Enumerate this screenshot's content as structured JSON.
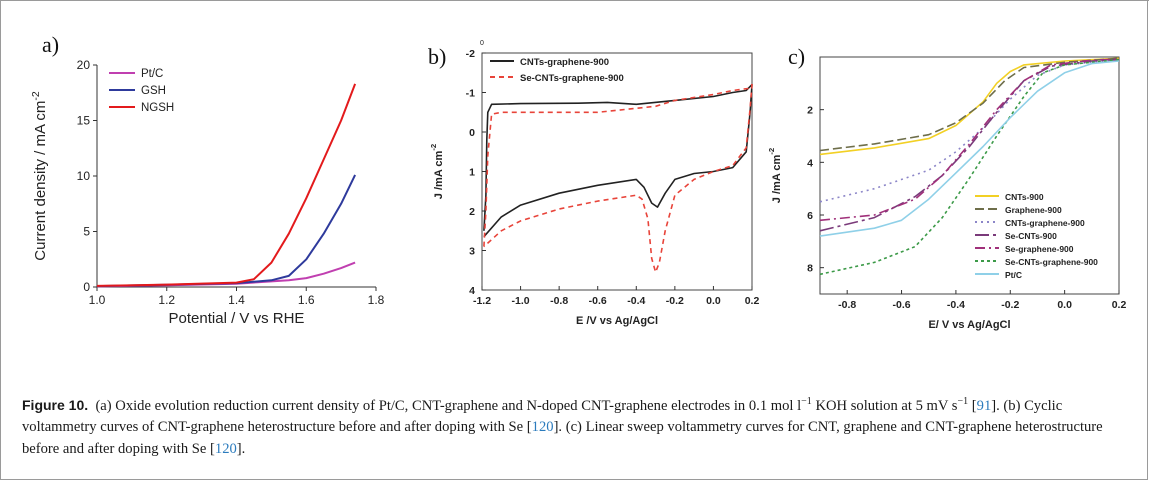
{
  "chart_data": [
    {
      "panel": "a)",
      "type": "line",
      "xlabel": "Potential / V vs RHE",
      "ylabel": "Current density / mA cm",
      "ylabel_sup": "-2",
      "xlim": [
        1.0,
        1.8
      ],
      "ylim": [
        0,
        20
      ],
      "xticks": [
        "1.0",
        "1.2",
        "1.4",
        "1.6",
        "1.8"
      ],
      "yticks": [
        "0",
        "5",
        "10",
        "15",
        "20"
      ],
      "legend": "top-left",
      "series": [
        {
          "name": "Pt/C",
          "color": "#c03fb0",
          "points": [
            [
              1.0,
              0.05
            ],
            [
              1.2,
              0.15
            ],
            [
              1.4,
              0.3
            ],
            [
              1.5,
              0.5
            ],
            [
              1.55,
              0.6
            ],
            [
              1.6,
              0.8
            ],
            [
              1.65,
              1.2
            ],
            [
              1.7,
              1.7
            ],
            [
              1.74,
              2.2
            ]
          ]
        },
        {
          "name": "GSH",
          "color": "#2e3a9c",
          "points": [
            [
              1.0,
              0.08
            ],
            [
              1.2,
              0.2
            ],
            [
              1.4,
              0.35
            ],
            [
              1.5,
              0.6
            ],
            [
              1.55,
              1.0
            ],
            [
              1.6,
              2.5
            ],
            [
              1.65,
              4.8
            ],
            [
              1.7,
              7.5
            ],
            [
              1.74,
              10.1
            ]
          ]
        },
        {
          "name": "NGSH",
          "color": "#e31a1c",
          "points": [
            [
              1.0,
              0.1
            ],
            [
              1.2,
              0.22
            ],
            [
              1.4,
              0.4
            ],
            [
              1.45,
              0.7
            ],
            [
              1.5,
              2.2
            ],
            [
              1.55,
              4.8
            ],
            [
              1.6,
              8.0
            ],
            [
              1.65,
              11.5
            ],
            [
              1.7,
              15.0
            ],
            [
              1.74,
              18.3
            ]
          ]
        }
      ]
    },
    {
      "panel": "b)",
      "type": "line",
      "xlabel": "E /V vs Ag/AgCl",
      "ylabel": "J /mA cm",
      "ylabel_sup": "-2",
      "xlim": [
        -1.2,
        0.2
      ],
      "ylim": [
        -2,
        4
      ],
      "inverted_y": true,
      "top_tick": "0",
      "xticks": [
        "-1.2",
        "-1.0",
        "-0.8",
        "-0.6",
        "-0.4",
        "-0.2",
        "0.0",
        "0.2"
      ],
      "yticks": [
        "-2",
        "-1",
        "0",
        "1",
        "2",
        "3",
        "4"
      ],
      "legend": "top-left",
      "series": [
        {
          "name": "CNTs-graphene-900",
          "color": "#222222",
          "dash": "none",
          "points": [
            [
              -1.19,
              2.5
            ],
            [
              -1.18,
              1.6
            ],
            [
              -1.175,
              0.2
            ],
            [
              -1.17,
              -0.5
            ],
            [
              -1.15,
              -0.7
            ],
            [
              -1.0,
              -0.72
            ],
            [
              -0.7,
              -0.73
            ],
            [
              -0.55,
              -0.75
            ],
            [
              -0.4,
              -0.7
            ],
            [
              -0.2,
              -0.8
            ],
            [
              0.0,
              -0.9
            ],
            [
              0.1,
              -1.0
            ],
            [
              0.17,
              -1.05
            ],
            [
              0.2,
              -1.2
            ],
            [
              0.19,
              -0.5
            ],
            [
              0.17,
              0.5
            ],
            [
              0.1,
              0.9
            ],
            [
              0.0,
              1.0
            ],
            [
              -0.1,
              1.05
            ],
            [
              -0.2,
              1.2
            ],
            [
              -0.25,
              1.55
            ],
            [
              -0.29,
              1.9
            ],
            [
              -0.32,
              1.8
            ],
            [
              -0.36,
              1.4
            ],
            [
              -0.4,
              1.2
            ],
            [
              -0.6,
              1.35
            ],
            [
              -0.8,
              1.55
            ],
            [
              -1.0,
              1.85
            ],
            [
              -1.1,
              2.15
            ],
            [
              -1.19,
              2.65
            ]
          ]
        },
        {
          "name": "Se-CNTs-graphene-900",
          "color": "#e8443a",
          "dash": "5,4",
          "points": [
            [
              -1.19,
              2.9
            ],
            [
              -1.18,
              2.0
            ],
            [
              -1.17,
              0.6
            ],
            [
              -1.15,
              -0.45
            ],
            [
              -1.1,
              -0.5
            ],
            [
              -1.0,
              -0.5
            ],
            [
              -0.6,
              -0.5
            ],
            [
              -0.5,
              -0.55
            ],
            [
              -0.3,
              -0.65
            ],
            [
              -0.2,
              -0.8
            ],
            [
              0.0,
              -0.95
            ],
            [
              0.1,
              -1.05
            ],
            [
              0.18,
              -1.1
            ],
            [
              0.2,
              -1.2
            ],
            [
              0.19,
              -0.6
            ],
            [
              0.17,
              0.4
            ],
            [
              0.1,
              0.85
            ],
            [
              0.0,
              1.0
            ],
            [
              -0.1,
              1.2
            ],
            [
              -0.2,
              1.6
            ],
            [
              -0.25,
              2.5
            ],
            [
              -0.28,
              3.3
            ],
            [
              -0.3,
              3.55
            ],
            [
              -0.32,
              3.2
            ],
            [
              -0.34,
              2.2
            ],
            [
              -0.37,
              1.7
            ],
            [
              -0.4,
              1.6
            ],
            [
              -0.6,
              1.75
            ],
            [
              -0.8,
              1.95
            ],
            [
              -1.0,
              2.25
            ],
            [
              -1.1,
              2.5
            ],
            [
              -1.19,
              2.9
            ]
          ]
        }
      ]
    },
    {
      "panel": "c)",
      "type": "line",
      "xlabel": "E/ V vs Ag/AgCl",
      "ylabel": "J /mA cm",
      "ylabel_sup": "-2",
      "xlim": [
        -0.9,
        0.2
      ],
      "ylim": [
        0,
        9
      ],
      "inverted_y": true,
      "xticks": [
        "-0.8",
        "-0.6",
        "-0.4",
        "-0.2",
        "0.0",
        "0.2"
      ],
      "yticks": [
        "2",
        "4",
        "6",
        "8"
      ],
      "legend": "bottom-right",
      "series": [
        {
          "name": "CNTs-900",
          "color": "#f2d024",
          "dash": "none",
          "points": [
            [
              -0.9,
              3.7
            ],
            [
              -0.7,
              3.45
            ],
            [
              -0.5,
              3.1
            ],
            [
              -0.4,
              2.6
            ],
            [
              -0.3,
              1.7
            ],
            [
              -0.25,
              1.0
            ],
            [
              -0.2,
              0.55
            ],
            [
              -0.15,
              0.3
            ],
            [
              0.0,
              0.15
            ],
            [
              0.2,
              0.05
            ]
          ]
        },
        {
          "name": "Graphene-900",
          "color": "#6e6e4a",
          "dash": "9,4",
          "points": [
            [
              -0.9,
              3.55
            ],
            [
              -0.7,
              3.3
            ],
            [
              -0.5,
              2.95
            ],
            [
              -0.4,
              2.5
            ],
            [
              -0.3,
              1.75
            ],
            [
              -0.22,
              0.9
            ],
            [
              -0.15,
              0.4
            ],
            [
              0.0,
              0.2
            ],
            [
              0.2,
              0.05
            ]
          ]
        },
        {
          "name": "CNTs-graphene-900",
          "color": "#8c86c8",
          "dash": "2,4",
          "points": [
            [
              -0.9,
              5.5
            ],
            [
              -0.7,
              5.0
            ],
            [
              -0.5,
              4.3
            ],
            [
              -0.4,
              3.6
            ],
            [
              -0.3,
              2.7
            ],
            [
              -0.2,
              1.6
            ],
            [
              -0.1,
              0.7
            ],
            [
              0.0,
              0.3
            ],
            [
              0.2,
              0.1
            ]
          ]
        },
        {
          "name": "Se-CNTs-900",
          "color": "#7a3a7a",
          "dash": "14,4,3,4",
          "points": [
            [
              -0.9,
              6.6
            ],
            [
              -0.7,
              6.1
            ],
            [
              -0.55,
              5.3
            ],
            [
              -0.45,
              4.5
            ],
            [
              -0.35,
              3.4
            ],
            [
              -0.25,
              2.1
            ],
            [
              -0.15,
              0.9
            ],
            [
              -0.05,
              0.35
            ],
            [
              0.1,
              0.15
            ],
            [
              0.2,
              0.1
            ]
          ]
        },
        {
          "name": "Se-graphene-900",
          "color": "#a0307a",
          "dash": "10,4,2,4",
          "points": [
            [
              -0.9,
              6.2
            ],
            [
              -0.7,
              6.0
            ],
            [
              -0.55,
              5.4
            ],
            [
              -0.45,
              4.5
            ],
            [
              -0.35,
              3.3
            ],
            [
              -0.25,
              2.0
            ],
            [
              -0.15,
              0.9
            ],
            [
              -0.05,
              0.3
            ],
            [
              0.1,
              0.12
            ],
            [
              0.2,
              0.08
            ]
          ]
        },
        {
          "name": "Se-CNTs-graphene-900",
          "color": "#3c9a48",
          "dash": "3,3",
          "points": [
            [
              -0.9,
              8.25
            ],
            [
              -0.7,
              7.8
            ],
            [
              -0.55,
              7.2
            ],
            [
              -0.45,
              6.1
            ],
            [
              -0.35,
              4.6
            ],
            [
              -0.25,
              3.0
            ],
            [
              -0.15,
              1.5
            ],
            [
              -0.08,
              0.6
            ],
            [
              0.0,
              0.3
            ],
            [
              0.2,
              0.1
            ]
          ]
        },
        {
          "name": "Pt/C",
          "color": "#8fd0e8",
          "dash": "none",
          "points": [
            [
              -0.9,
              6.8
            ],
            [
              -0.7,
              6.5
            ],
            [
              -0.6,
              6.2
            ],
            [
              -0.5,
              5.4
            ],
            [
              -0.4,
              4.4
            ],
            [
              -0.3,
              3.4
            ],
            [
              -0.2,
              2.3
            ],
            [
              -0.1,
              1.3
            ],
            [
              0.0,
              0.6
            ],
            [
              0.1,
              0.25
            ],
            [
              0.2,
              0.15
            ]
          ]
        }
      ]
    }
  ],
  "caption": {
    "figure_label": "Figure 10.",
    "text_1": "(a) Oxide evolution reduction current density of Pt/C, CNT-graphene and N-doped CNT-graphene electrodes in 0.1 mol l",
    "sup_1": "−1",
    "text_2": " KOH solution at 5 mV s",
    "sup_2": "−1",
    "text_3": " [",
    "ref_1": "91",
    "text_4": "]. (b) Cyclic voltammetry curves of CNT-graphene heterostructure before and after doping with Se [",
    "ref_2": "120",
    "text_5": "]. (c) Linear sweep voltammetry curves for CNT, graphene and CNT-graphene heterostructure before and after doping with Se [",
    "ref_3": "120",
    "text_6": "]."
  }
}
